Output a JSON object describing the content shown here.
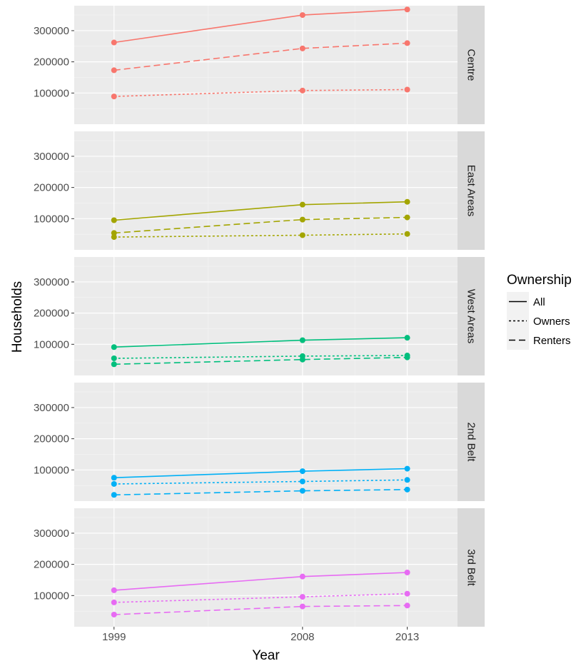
{
  "chart_data": {
    "type": "line",
    "xlabel": "Year",
    "ylabel": "Households",
    "x": [
      1999,
      2008,
      2013
    ],
    "x_ticks": [
      "1999",
      "2008",
      "2013"
    ],
    "ylim": [
      0,
      380000
    ],
    "y_ticks": [
      100000,
      200000,
      300000
    ],
    "y_tick_labels": [
      "100000",
      "200000",
      "300000"
    ],
    "grid": true,
    "legend": {
      "title": "Ownership",
      "position": "right",
      "entries": [
        {
          "label": "All",
          "dash": "solid"
        },
        {
          "label": "Owners",
          "dash": "dotted"
        },
        {
          "label": "Renters",
          "dash": "dashed"
        }
      ]
    },
    "facets": [
      {
        "label": "Centre",
        "color": "#F8766D",
        "series": [
          {
            "name": "All",
            "values": [
              262000,
              350000,
              368000
            ]
          },
          {
            "name": "Owners",
            "values": [
              89000,
              108000,
              111000
            ]
          },
          {
            "name": "Renters",
            "values": [
              173000,
              243000,
              260000
            ]
          }
        ]
      },
      {
        "label": "East Areas",
        "color": "#A3A500",
        "series": [
          {
            "name": "All",
            "values": [
              95000,
              145000,
              154000
            ]
          },
          {
            "name": "Owners",
            "values": [
              41000,
              47000,
              51000
            ]
          },
          {
            "name": "Renters",
            "values": [
              54000,
              97000,
              104000
            ]
          }
        ]
      },
      {
        "label": "West Areas",
        "color": "#00BF7D",
        "series": [
          {
            "name": "All",
            "values": [
              91000,
              113000,
              121000
            ]
          },
          {
            "name": "Owners",
            "values": [
              55000,
              62000,
              64000
            ]
          },
          {
            "name": "Renters",
            "values": [
              36000,
              51000,
              58000
            ]
          }
        ]
      },
      {
        "label": "2nd Belt",
        "color": "#00B0F6",
        "series": [
          {
            "name": "All",
            "values": [
              75000,
              96000,
              104000
            ]
          },
          {
            "name": "Owners",
            "values": [
              55000,
              63000,
              68000
            ]
          },
          {
            "name": "Renters",
            "values": [
              20000,
              33000,
              37000
            ]
          }
        ]
      },
      {
        "label": "3rd Belt",
        "color": "#E76BF3",
        "series": [
          {
            "name": "All",
            "values": [
              117000,
              161000,
              174000
            ]
          },
          {
            "name": "Owners",
            "values": [
              78000,
              96000,
              106000
            ]
          },
          {
            "name": "Renters",
            "values": [
              39000,
              65000,
              68000
            ]
          }
        ]
      }
    ]
  }
}
